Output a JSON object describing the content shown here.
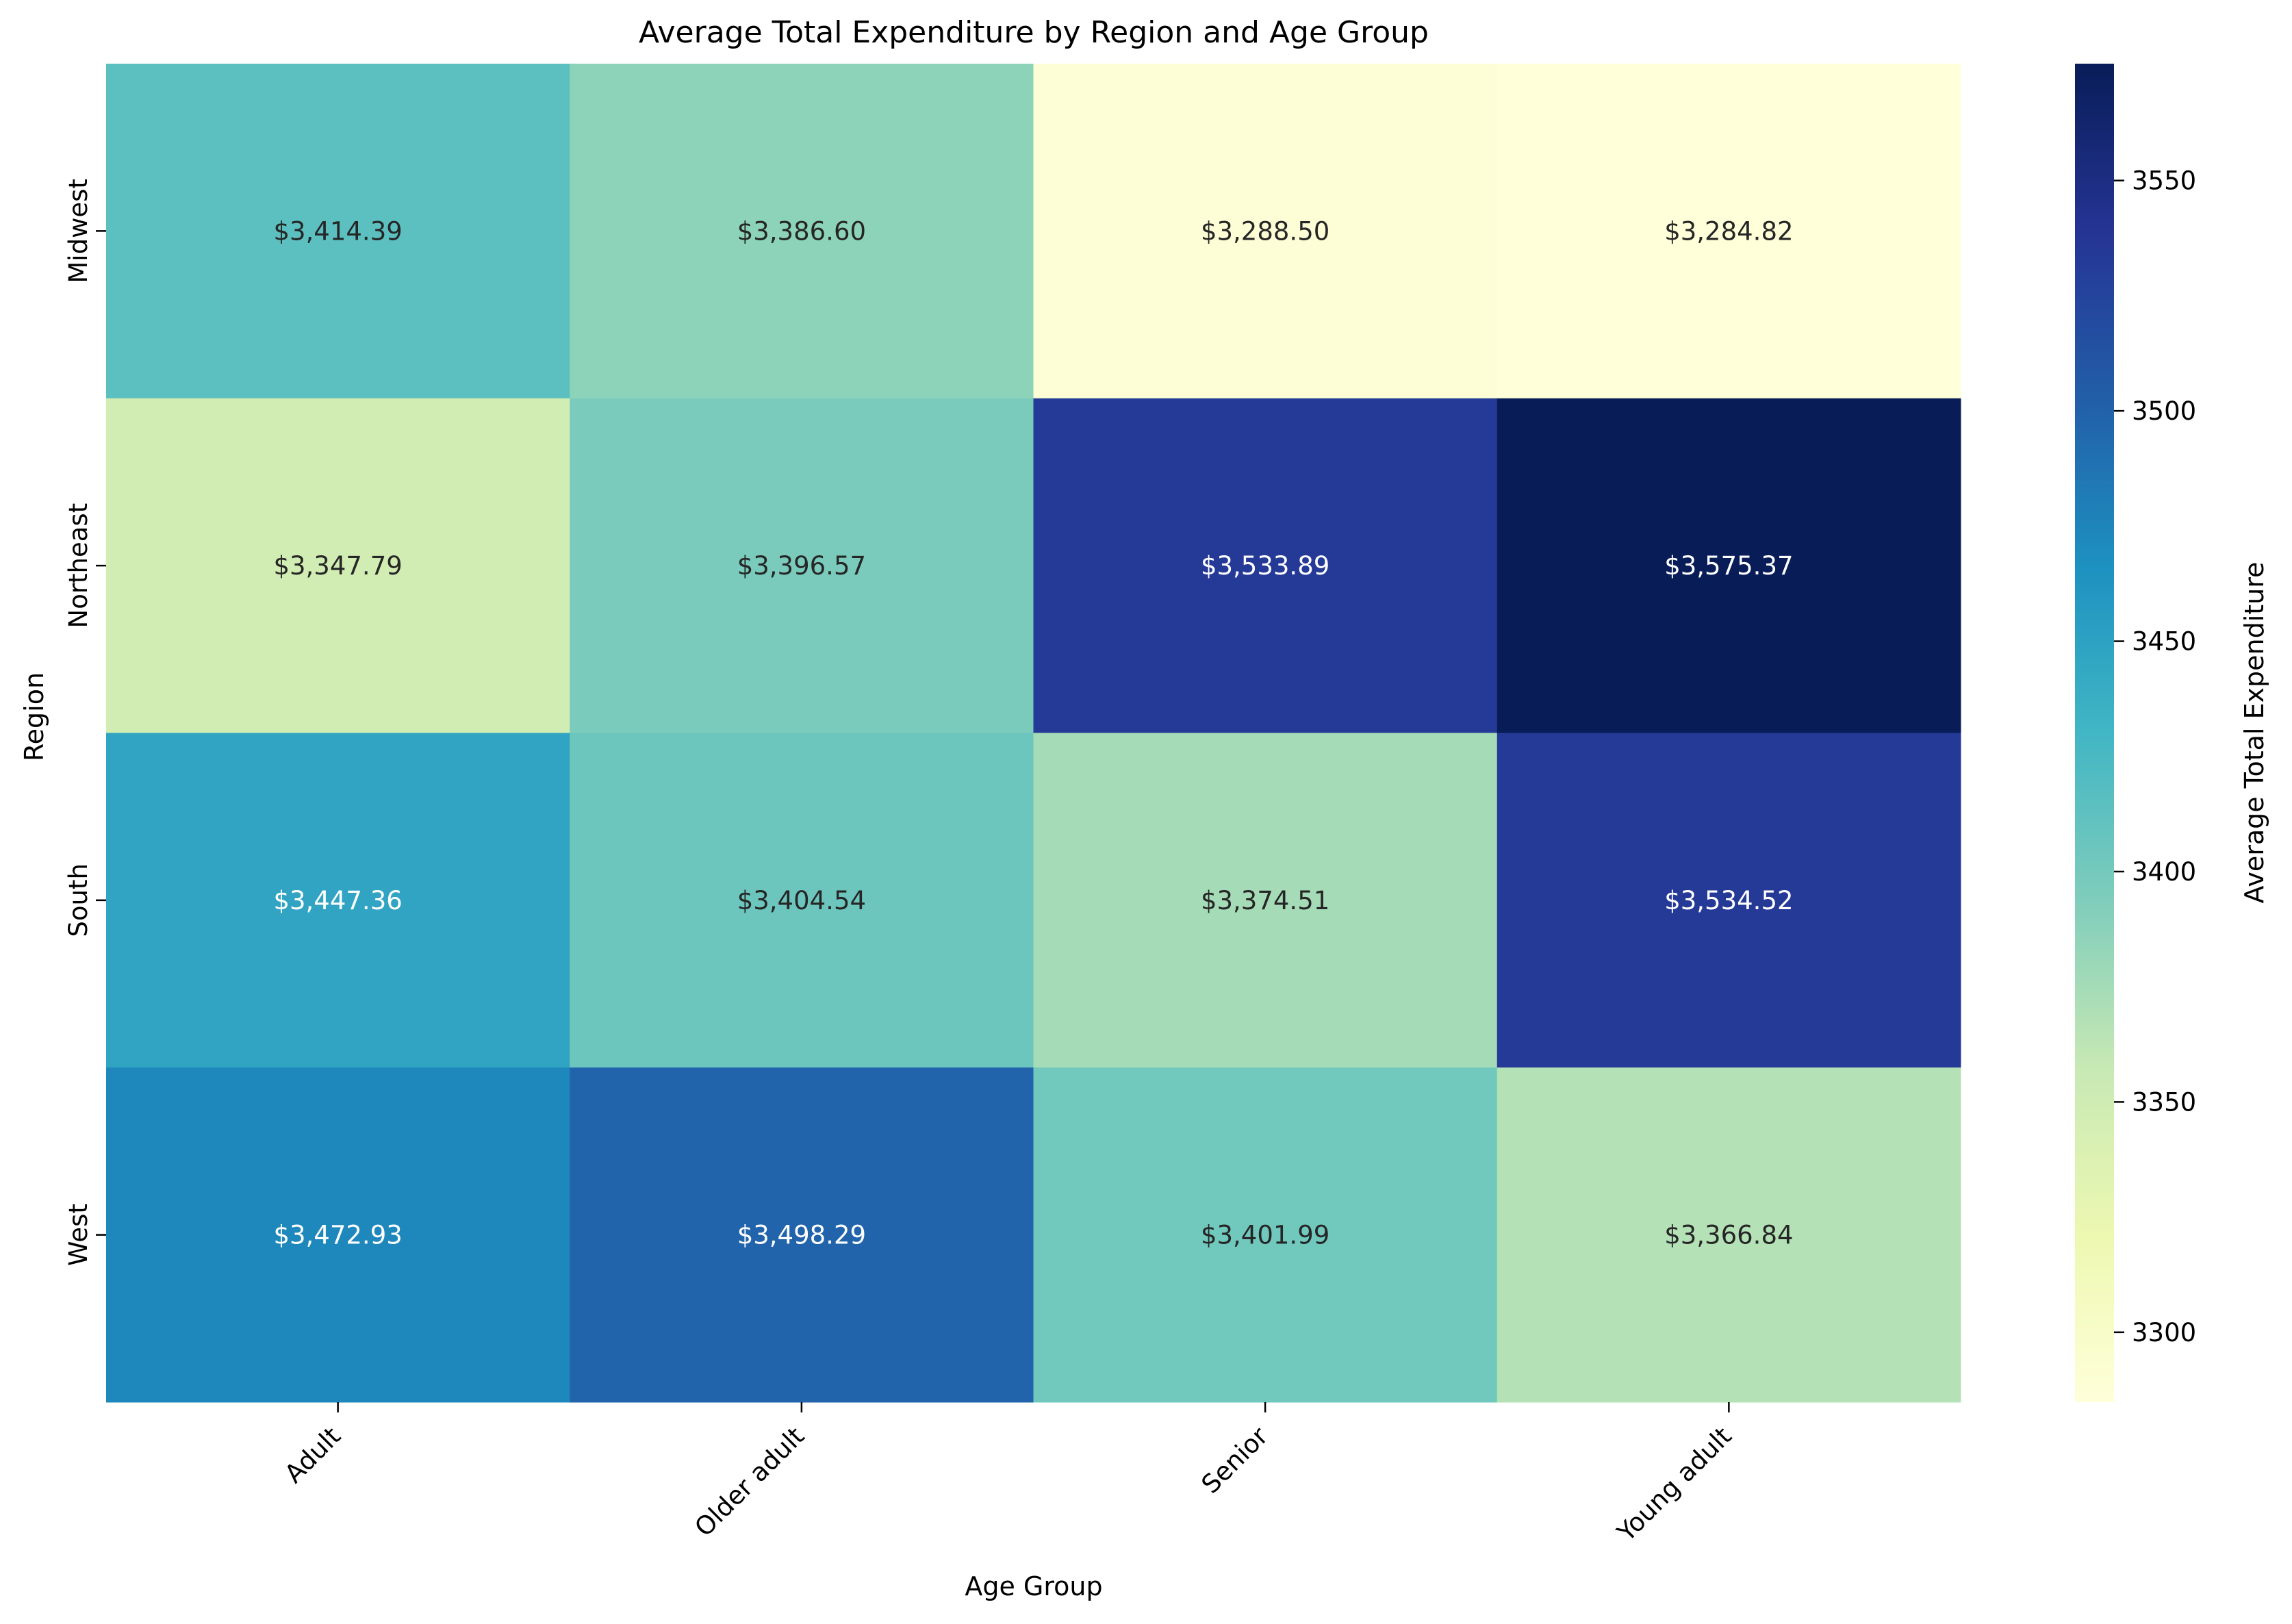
{
  "chart_data": {
    "type": "heatmap",
    "title": "Average Total Expenditure by Region and Age Group",
    "xlabel": "Age Group",
    "ylabel": "Region",
    "x_categories": [
      "Adult",
      "Older adult",
      "Senior",
      "Young adult"
    ],
    "y_categories": [
      "Midwest",
      "Northeast",
      "South",
      "West"
    ],
    "values": [
      [
        3414.39,
        3386.6,
        3288.5,
        3284.82
      ],
      [
        3347.79,
        3396.57,
        3533.89,
        3575.37
      ],
      [
        3447.36,
        3404.54,
        3374.51,
        3534.52
      ],
      [
        3472.93,
        3498.29,
        3401.99,
        3366.84
      ]
    ],
    "cell_labels": [
      [
        "$3,414.39",
        "$3,386.60",
        "$3,288.50",
        "$3,284.82"
      ],
      [
        "$3,347.79",
        "$3,396.57",
        "$3,533.89",
        "$3,575.37"
      ],
      [
        "$3,447.36",
        "$3,404.54",
        "$3,374.51",
        "$3,534.52"
      ],
      [
        "$3,472.93",
        "$3,498.29",
        "$3,401.99",
        "$3,366.84"
      ]
    ],
    "colormap": "YlGnBu",
    "colorbar": {
      "label": "Average Total Expenditure",
      "range": [
        3284.82,
        3575.37
      ],
      "ticks": [
        "3300",
        "3350",
        "3400",
        "3450",
        "3500",
        "3550"
      ]
    }
  }
}
